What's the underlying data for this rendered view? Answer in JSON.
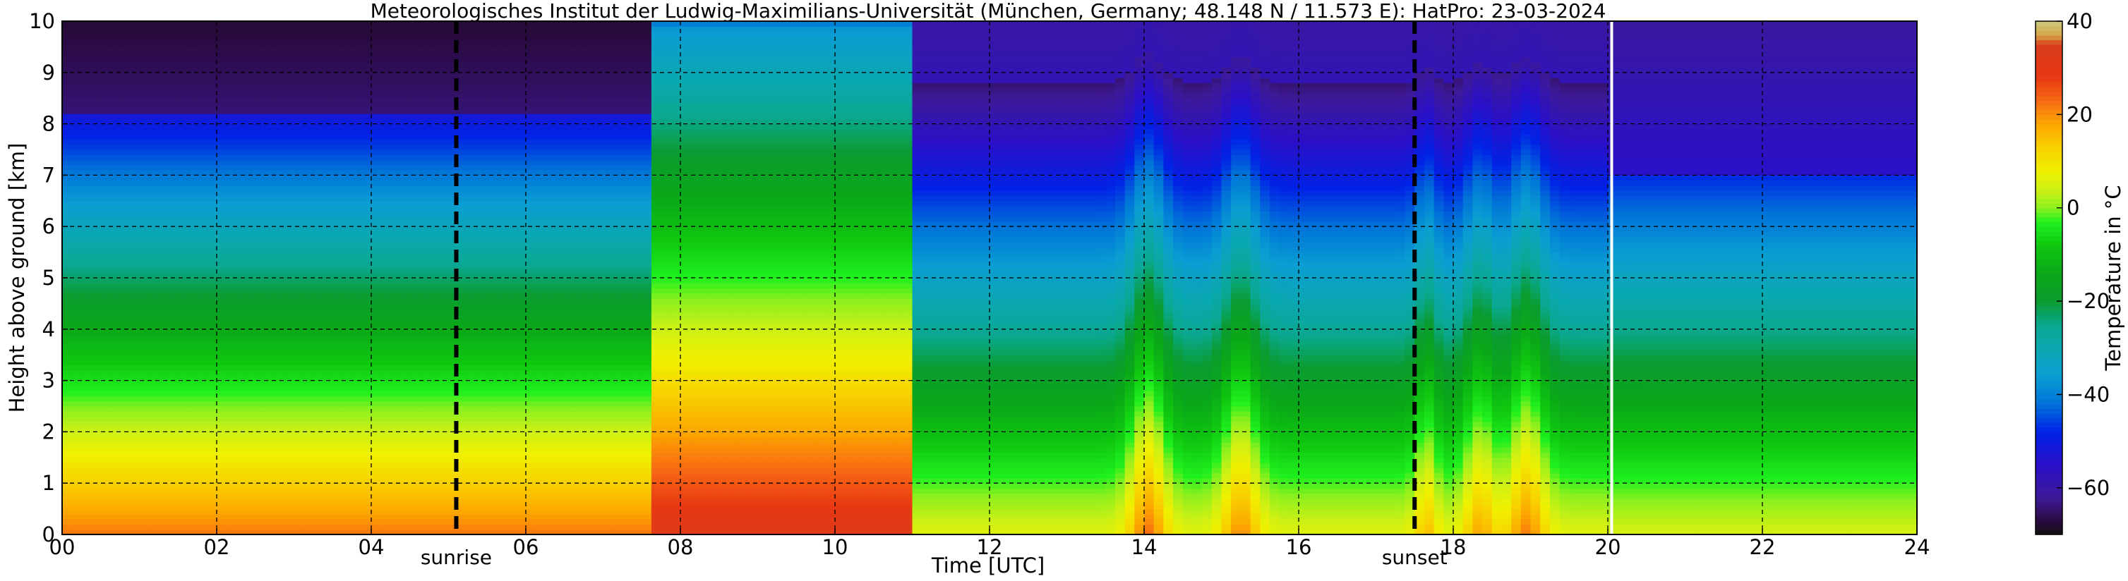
{
  "chart_data": {
    "type": "heatmap",
    "title": "Meteorologisches Institut der Ludwig-Maximilians-Universität (München, Germany; 48.148 N / 11.573 E):    HatPro: 23-03-2024",
    "xlabel": "Time [UTC]",
    "ylabel": "Height above ground [km]",
    "xlim": [
      0,
      24
    ],
    "ylim": [
      0,
      10
    ],
    "x_ticks": [
      "00",
      "02",
      "04",
      "06",
      "08",
      "10",
      "12",
      "14",
      "16",
      "18",
      "20",
      "22",
      "24"
    ],
    "y_ticks": [
      "0",
      "1",
      "2",
      "3",
      "4",
      "5",
      "6",
      "7",
      "8",
      "9",
      "10"
    ],
    "grid": true,
    "colorbar": {
      "label": "Temperature in °C",
      "range": [
        -70,
        40
      ],
      "ticks": [
        "40",
        "20",
        "0",
        "−20",
        "−40",
        "−60"
      ],
      "levels": [
        {
          "v": -70,
          "color": "#101010"
        },
        {
          "v": -67,
          "color": "#2a0a40"
        },
        {
          "v": -62,
          "color": "#3d1a99"
        },
        {
          "v": -55,
          "color": "#2a10c8"
        },
        {
          "v": -48,
          "color": "#0022e6"
        },
        {
          "v": -42,
          "color": "#0072d8"
        },
        {
          "v": -36,
          "color": "#0a9ed2"
        },
        {
          "v": -30,
          "color": "#0aa8b0"
        },
        {
          "v": -25,
          "color": "#0aa890"
        },
        {
          "v": -20,
          "color": "#0a9c30"
        },
        {
          "v": -14,
          "color": "#0aa818"
        },
        {
          "v": -8,
          "color": "#10c810"
        },
        {
          "v": -3,
          "color": "#1ef01e"
        },
        {
          "v": 0,
          "color": "#8cf01e"
        },
        {
          "v": 4,
          "color": "#cef014"
        },
        {
          "v": 8,
          "color": "#f0f000"
        },
        {
          "v": 13,
          "color": "#f8d000"
        },
        {
          "v": 18,
          "color": "#fca600"
        },
        {
          "v": 23,
          "color": "#f86a14"
        },
        {
          "v": 28,
          "color": "#e83814"
        },
        {
          "v": 35,
          "color": "#d83c1c"
        },
        {
          "v": 37,
          "color": "#d8a848"
        },
        {
          "v": 40,
          "color": "#c8c880"
        }
      ]
    },
    "markers": [
      {
        "label": "sunrise",
        "x": 5.1,
        "style": "dashed"
      },
      {
        "label": "sunset",
        "x": 17.5,
        "style": "dashed"
      },
      {
        "label": "",
        "x": 20.05,
        "style": "white-gap"
      }
    ],
    "regimes": [
      {
        "t0": 0.0,
        "t1": 7.6,
        "base": 22,
        "lapse": 9,
        "tropo_km": 8.2,
        "strat_temp": -64
      },
      {
        "t0": 7.6,
        "t1": 11.0,
        "base": 32,
        "lapse": 7,
        "tropo_km": 9.9,
        "strat_temp": -40
      },
      {
        "t0": 11.0,
        "t1": 20.05,
        "base": 6,
        "lapse": 8,
        "tropo_km": 8.8,
        "strat_temp": -58
      },
      {
        "t0": 20.05,
        "t1": 24.0,
        "base": 5,
        "lapse": 7.5,
        "tropo_km": 7.0,
        "strat_temp": -55
      }
    ],
    "spikes": [
      {
        "t": 14.05,
        "amp": 14,
        "width": 0.25
      },
      {
        "t": 15.25,
        "amp": 12,
        "width": 0.25
      },
      {
        "t": 17.65,
        "amp": 8,
        "width": 0.15
      },
      {
        "t": 18.35,
        "amp": 10,
        "width": 0.22
      },
      {
        "t": 18.95,
        "amp": 13,
        "width": 0.25
      }
    ]
  }
}
